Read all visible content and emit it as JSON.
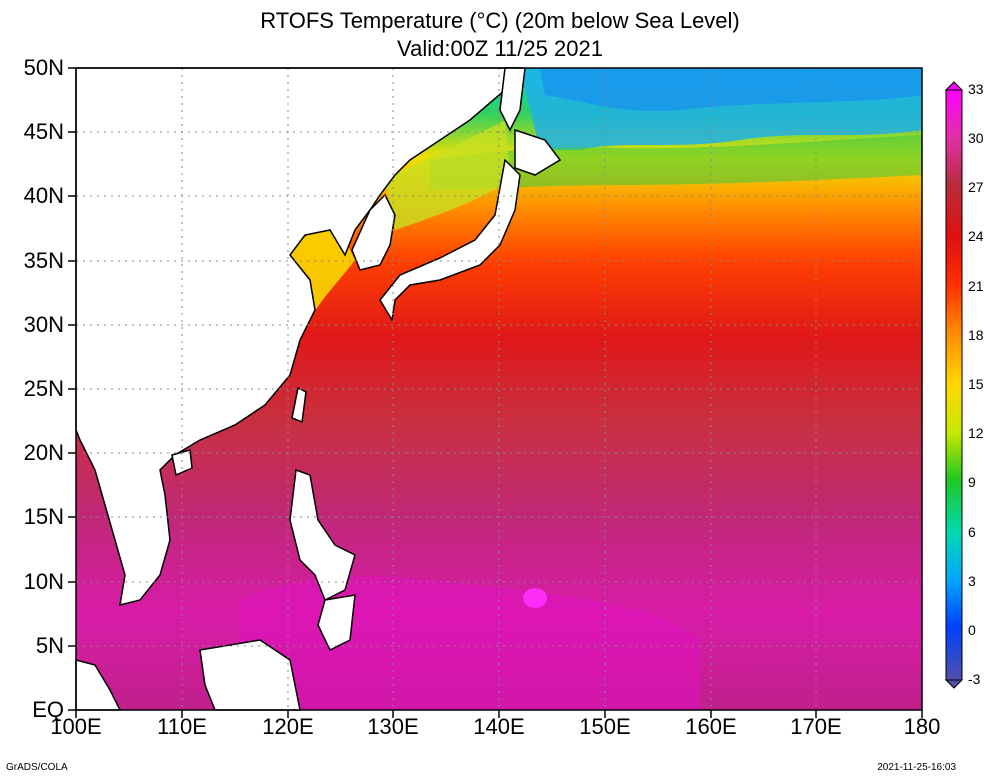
{
  "title": "RTOFS Temperature (°C) (20m below Sea Level)",
  "valid": "Valid:00Z 11/25 2021",
  "lat_labels": [
    "50N",
    "45N",
    "40N",
    "35N",
    "30N",
    "25N",
    "20N",
    "15N",
    "10N",
    "5N",
    "EQ"
  ],
  "lon_labels": [
    "100E",
    "110E",
    "120E",
    "130E",
    "140E",
    "150E",
    "160E",
    "170E",
    "180"
  ],
  "colorbar": {
    "labels": [
      "33",
      "30",
      "27",
      "24",
      "21",
      "18",
      "15",
      "12",
      "9",
      "6",
      "3",
      "0",
      "-3"
    ],
    "colors": [
      "#ff00ff",
      "#e030a8",
      "#b82c3c",
      "#e01010",
      "#ff3000",
      "#ff8a00",
      "#ffd800",
      "#c8e800",
      "#20c820",
      "#00d8b0",
      "#00a8ff",
      "#0040ff",
      "#5050a8"
    ]
  },
  "credit_left": "GrADS/COLA",
  "credit_right": "2021-11-25-16:03"
}
